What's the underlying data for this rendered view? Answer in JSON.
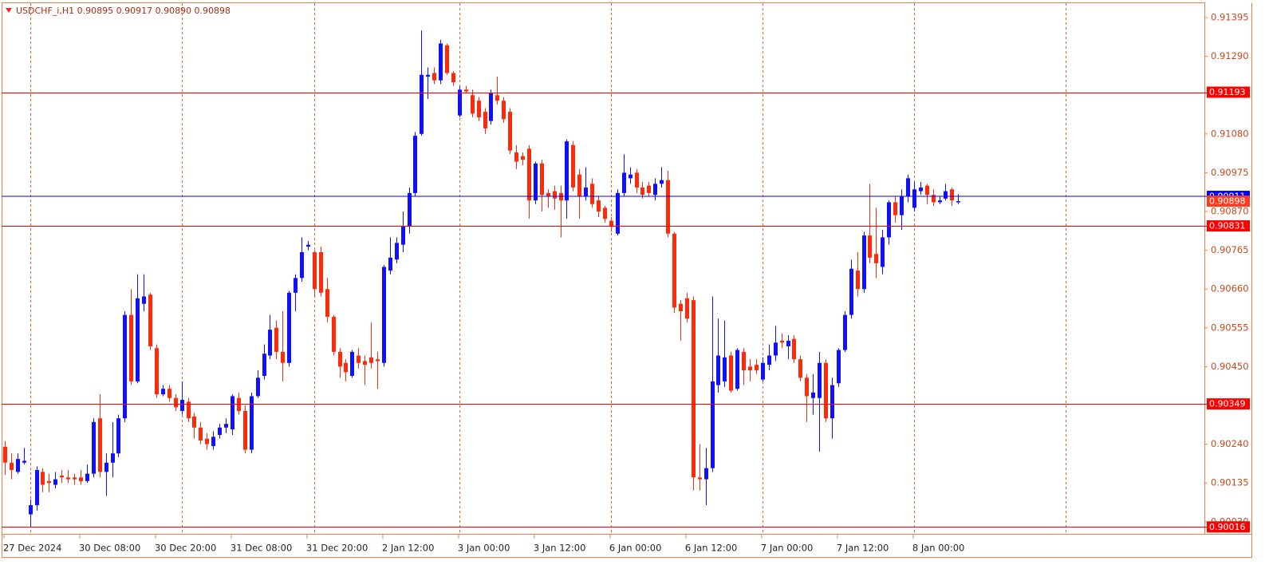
{
  "chart_data": {
    "type": "candlestick",
    "title": "USDCHF_i,H1  0.90895 0.90917 0.90890 0.90898",
    "up_color": "#1010ff",
    "down_color": "#ff2a0a",
    "categories": [
      "27 Dec 2024",
      null,
      null,
      null,
      null,
      null,
      null,
      null,
      null,
      null,
      null,
      null,
      "30 Dec 08:00",
      null,
      null,
      null,
      null,
      null,
      null,
      null,
      null,
      null,
      null,
      null,
      "30 Dec 20:00",
      null,
      null,
      null,
      null,
      null,
      null,
      null,
      null,
      null,
      null,
      null,
      "31 Dec 08:00",
      null,
      null,
      null,
      null,
      null,
      null,
      null,
      null,
      null,
      null,
      null,
      "31 Dec 20:00",
      null,
      null,
      null,
      null,
      null,
      null,
      null,
      null,
      null,
      null,
      null,
      "2 Jan 12:00",
      null,
      null,
      null,
      null,
      null,
      null,
      null,
      null,
      null,
      null,
      null,
      "3 Jan 00:00",
      null,
      null,
      null,
      null,
      null,
      null,
      null,
      null,
      null,
      null,
      null,
      "3 Jan 12:00",
      null,
      null,
      null,
      null,
      null,
      null,
      null,
      null,
      null,
      null,
      null,
      "6 Jan 00:00",
      null,
      null,
      null,
      null,
      null,
      null,
      null,
      null,
      null,
      null,
      null,
      "6 Jan 12:00",
      null,
      null,
      null,
      null,
      null,
      null,
      null,
      null,
      null,
      null,
      null,
      "7 Jan 00:00",
      null,
      null,
      null,
      null,
      null,
      null,
      null,
      null,
      null,
      null,
      null,
      "7 Jan 12:00",
      null,
      null,
      null,
      null,
      null,
      null,
      null,
      null,
      null,
      null,
      null,
      "8 Jan 00:00",
      null,
      null,
      null,
      null,
      null,
      null,
      null
    ],
    "open": [
      0.90233,
      0.9019,
      0.90165,
      0.9019,
      0.9005,
      0.90075,
      0.90165,
      0.9014,
      0.9013,
      0.90155,
      0.9015,
      0.9015,
      0.9015,
      0.9014,
      0.9016,
      0.9031,
      0.90165,
      0.9019,
      0.90215,
      0.9031,
      0.9059,
      0.9041,
      0.9062,
      0.90645,
      0.905,
      0.90375,
      0.9039,
      0.90365,
      0.9033,
      0.90355,
      0.90315,
      0.90285,
      0.90255,
      0.90235,
      0.90265,
      0.90285,
      0.9028,
      0.90365,
      0.9033,
      0.90225,
      0.9037,
      0.90425,
      0.9048,
      0.90555,
      0.9049,
      0.9046,
      0.9065,
      0.9069,
      0.90775,
      0.9076,
      0.9076,
      0.9066,
      0.90585,
      0.9049,
      0.9046,
      0.90425,
      0.9048,
      0.90465,
      0.90475,
      0.9047,
      0.9046,
      0.9071,
      0.9074,
      0.9078,
      0.9083,
      0.9092,
      0.9108,
      0.91235,
      0.91245,
      0.91225,
      0.9132,
      0.91245,
      0.9113,
      0.912,
      0.91185,
      0.9117,
      0.9114,
      0.91115,
      0.91185,
      0.9117,
      0.9114,
      0.9103,
      0.9102,
      0.9104,
      0.909,
      0.91,
      0.9092,
      0.90925,
      0.9092,
      0.909,
      0.9105,
      0.9097,
      0.9091,
      0.90945,
      0.909,
      0.9088,
      0.90845,
      0.9081,
      0.9092,
      0.9096,
      0.90975,
      0.90935,
      0.9094,
      0.90915,
      0.90945,
      0.90955,
      0.9081,
      0.9062,
      0.90635,
      0.9063,
      0.9015,
      0.90145,
      0.90175,
      0.904,
      0.9041,
      0.9048,
      0.9039,
      0.9049,
      0.9045,
      0.90455,
      0.90415,
      0.90455,
      0.9048,
      0.9052,
      0.90505,
      0.90525,
      0.9047,
      0.9042,
      0.90365,
      0.90365,
      0.9046,
      0.9031,
      0.90405,
      0.90495,
      0.9059,
      0.9071,
      0.9066,
      0.90805,
      0.90755,
      0.9072,
      0.908,
      0.90895,
      0.9086,
      0.9091,
      0.9088,
      0.90925,
      0.9094,
      0.90915,
      0.90895,
      0.90905,
      0.9093,
      0.90895
    ],
    "high": [
      0.90248,
      0.90215,
      0.90215,
      0.9023,
      0.9009,
      0.9018,
      0.90175,
      0.9016,
      0.90165,
      0.9017,
      0.9017,
      0.9016,
      0.9017,
      0.90185,
      0.9031,
      0.90375,
      0.90215,
      0.903,
      0.9032,
      0.906,
      0.9066,
      0.907,
      0.907,
      0.9065,
      0.9051,
      0.904,
      0.904,
      0.90375,
      0.9041,
      0.90365,
      0.90325,
      0.903,
      0.9027,
      0.90275,
      0.90295,
      0.9031,
      0.90375,
      0.9038,
      0.90345,
      0.9038,
      0.9044,
      0.9051,
      0.9059,
      0.90575,
      0.906,
      0.90655,
      0.907,
      0.908,
      0.9079,
      0.90765,
      0.90775,
      0.9069,
      0.9059,
      0.905,
      0.9047,
      0.90495,
      0.905,
      0.9048,
      0.9057,
      0.9049,
      0.90725,
      0.908,
      0.908,
      0.9087,
      0.90935,
      0.91085,
      0.9136,
      0.9126,
      0.9126,
      0.91335,
      0.91325,
      0.9125,
      0.9121,
      0.9121,
      0.912,
      0.9118,
      0.9115,
      0.912,
      0.91235,
      0.9118,
      0.9115,
      0.9105,
      0.9103,
      0.9105,
      0.91005,
      0.9101,
      0.9093,
      0.9094,
      0.9094,
      0.91065,
      0.9106,
      0.90985,
      0.9099,
      0.9096,
      0.9091,
      0.90885,
      0.90855,
      0.9093,
      0.91025,
      0.9099,
      0.90985,
      0.9095,
      0.9095,
      0.9096,
      0.9099,
      0.9098,
      0.90815,
      0.9063,
      0.9065,
      0.9064,
      0.9024,
      0.9023,
      0.9064,
      0.9058,
      0.90575,
      0.9049,
      0.905,
      0.905,
      0.9047,
      0.9047,
      0.90475,
      0.9051,
      0.9056,
      0.9054,
      0.90535,
      0.90535,
      0.9048,
      0.9043,
      0.9043,
      0.9049,
      0.9047,
      0.9042,
      0.905,
      0.906,
      0.9074,
      0.9076,
      0.90815,
      0.90945,
      0.9088,
      0.9082,
      0.909,
      0.9091,
      0.9093,
      0.9097,
      0.9095,
      0.9095,
      0.90945,
      0.9093,
      0.9091,
      0.90945,
      0.90935,
      0.90917
    ],
    "low": [
      0.90157,
      0.90145,
      0.9016,
      0.90185,
      0.90017,
      0.9006,
      0.9011,
      0.9011,
      0.9012,
      0.90135,
      0.90135,
      0.9013,
      0.9013,
      0.90135,
      0.9015,
      0.9015,
      0.901,
      0.9015,
      0.90205,
      0.903,
      0.904,
      0.90405,
      0.906,
      0.90495,
      0.90365,
      0.9037,
      0.90355,
      0.9033,
      0.9032,
      0.903,
      0.90255,
      0.9024,
      0.90225,
      0.90225,
      0.90255,
      0.9027,
      0.90265,
      0.9032,
      0.90215,
      0.90215,
      0.90365,
      0.90415,
      0.9047,
      0.9047,
      0.9041,
      0.9045,
      0.906,
      0.9068,
      0.90765,
      0.9064,
      0.9064,
      0.9057,
      0.9048,
      0.9042,
      0.9041,
      0.9042,
      0.90445,
      0.904,
      0.90445,
      0.9039,
      0.9045,
      0.907,
      0.9073,
      0.9076,
      0.9081,
      0.9091,
      0.91075,
      0.91175,
      0.91215,
      0.91215,
      0.9124,
      0.9121,
      0.91125,
      0.9119,
      0.91125,
      0.91115,
      0.9108,
      0.91105,
      0.9116,
      0.9111,
      0.91025,
      0.90985,
      0.90995,
      0.9085,
      0.9089,
      0.9087,
      0.9088,
      0.90875,
      0.908,
      0.9085,
      0.90925,
      0.9085,
      0.909,
      0.9088,
      0.90855,
      0.9084,
      0.90815,
      0.90805,
      0.9091,
      0.90945,
      0.9092,
      0.90905,
      0.9091,
      0.909,
      0.90935,
      0.908,
      0.90595,
      0.9052,
      0.9057,
      0.90115,
      0.90115,
      0.90075,
      0.90165,
      0.9038,
      0.90395,
      0.9038,
      0.90385,
      0.904,
      0.9041,
      0.9043,
      0.9041,
      0.9044,
      0.90465,
      0.905,
      0.9047,
      0.9046,
      0.9041,
      0.903,
      0.9032,
      0.9022,
      0.903,
      0.90255,
      0.90395,
      0.9049,
      0.9058,
      0.9064,
      0.9065,
      0.9073,
      0.9069,
      0.907,
      0.9078,
      0.9084,
      0.9082,
      0.90895,
      0.9087,
      0.90915,
      0.9089,
      0.90885,
      0.9089,
      0.909,
      0.90885,
      0.9089
    ],
    "close": [
      0.9019,
      0.9017,
      0.902,
      0.90195,
      0.90075,
      0.9017,
      0.9013,
      0.90135,
      0.90145,
      0.9015,
      0.90145,
      0.90145,
      0.9014,
      0.9016,
      0.903,
      0.90165,
      0.9019,
      0.90215,
      0.9031,
      0.9059,
      0.9041,
      0.90635,
      0.9064,
      0.90505,
      0.90375,
      0.9039,
      0.90365,
      0.9034,
      0.9036,
      0.9031,
      0.90285,
      0.9025,
      0.9024,
      0.9026,
      0.90285,
      0.90295,
      0.9037,
      0.9033,
      0.90225,
      0.9037,
      0.9042,
      0.90485,
      0.9055,
      0.9049,
      0.9046,
      0.9065,
      0.9069,
      0.9076,
      0.9078,
      0.9066,
      0.9065,
      0.90585,
      0.9049,
      0.9045,
      0.90435,
      0.9049,
      0.9046,
      0.90455,
      0.9046,
      0.90465,
      0.9072,
      0.90745,
      0.90785,
      0.9083,
      0.9092,
      0.91075,
      0.9124,
      0.9124,
      0.91225,
      0.91325,
      0.91245,
      0.9122,
      0.912,
      0.91195,
      0.91135,
      0.91125,
      0.91095,
      0.9119,
      0.9117,
      0.9112,
      0.91035,
      0.91005,
      0.9101,
      0.909,
      0.91,
      0.90915,
      0.9091,
      0.90905,
      0.909,
      0.9106,
      0.90935,
      0.9091,
      0.90935,
      0.9089,
      0.9087,
      0.9085,
      0.9083,
      0.9092,
      0.90975,
      0.9097,
      0.90935,
      0.90915,
      0.9092,
      0.90945,
      0.90955,
      0.9081,
      0.9061,
      0.906,
      0.9058,
      0.9015,
      0.90145,
      0.90175,
      0.9041,
      0.9048,
      0.90475,
      0.90385,
      0.90495,
      0.9044,
      0.9044,
      0.9044,
      0.9046,
      0.9048,
      0.90515,
      0.90515,
      0.9052,
      0.9047,
      0.9042,
      0.9037,
      0.9038,
      0.9046,
      0.9031,
      0.904,
      0.90495,
      0.9059,
      0.90715,
      0.9066,
      0.90805,
      0.90745,
      0.9073,
      0.908,
      0.90895,
      0.9086,
      0.9091,
      0.9096,
      0.9093,
      0.90935,
      0.90915,
      0.90895,
      0.909,
      0.90925,
      0.909,
      0.90898
    ],
    "xlim": [
      -0.5,
      190
    ],
    "ylim": [
      0.89995,
      0.91434
    ],
    "yticks": [
      0.91395,
      {
        "value": 0.9129,
        "label": "0.91290"
      },
      {
        "value": 0.9108,
        "label": "0.91080"
      },
      0.90975,
      {
        "value": 0.9087,
        "label": "0.90870"
      },
      0.90765,
      {
        "value": 0.9066,
        "label": "0.90660"
      },
      0.90555,
      {
        "value": 0.9045,
        "label": "0.90450"
      },
      {
        "value": 0.9024,
        "label": "0.90240"
      },
      0.90135,
      {
        "value": 0.9003,
        "label": "0.90030"
      }
    ],
    "separators": [
      4,
      28,
      49,
      72,
      96,
      120,
      144,
      168
    ],
    "separator_color": "#f06020",
    "levels": [
      {
        "value": 0.91193,
        "color": "#ff0000"
      },
      {
        "value": 0.90831,
        "color": "#ff0000"
      },
      {
        "value": 0.90349,
        "color": "#ff0000"
      },
      {
        "value": 0.90016,
        "color": "#ff0000"
      }
    ],
    "bid_line": {
      "value": 0.90911,
      "color": "#0000ff"
    },
    "price_label_color": "#ff3b1f"
  }
}
